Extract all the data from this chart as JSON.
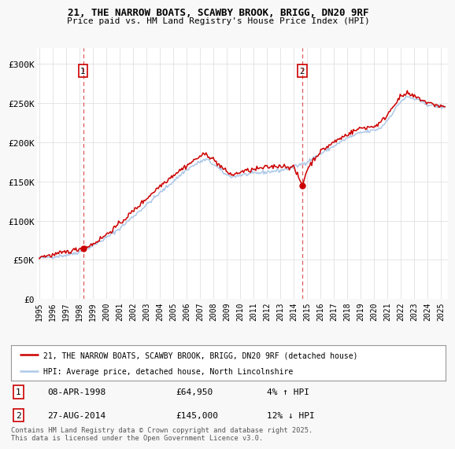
{
  "title": "21, THE NARROW BOATS, SCAWBY BROOK, BRIGG, DN20 9RF",
  "subtitle": "Price paid vs. HM Land Registry's House Price Index (HPI)",
  "xlim": [
    1994.8,
    2025.5
  ],
  "ylim": [
    0,
    320000
  ],
  "yticks": [
    0,
    50000,
    100000,
    150000,
    200000,
    250000,
    300000
  ],
  "ytick_labels": [
    "£0",
    "£50K",
    "£100K",
    "£150K",
    "£200K",
    "£250K",
    "£300K"
  ],
  "xticks": [
    1995,
    1996,
    1997,
    1998,
    1999,
    2000,
    2001,
    2002,
    2003,
    2004,
    2005,
    2006,
    2007,
    2008,
    2009,
    2010,
    2011,
    2012,
    2013,
    2014,
    2015,
    2016,
    2017,
    2018,
    2019,
    2020,
    2021,
    2022,
    2023,
    2024,
    2025
  ],
  "hpi_color": "#adc8e8",
  "price_color": "#cc0000",
  "marker1_x": 1998.27,
  "marker1_y": 64950,
  "marker1_label": "1",
  "marker1_date": "08-APR-1998",
  "marker1_price": "£64,950",
  "marker1_hpi": "4% ↑ HPI",
  "marker2_x": 2014.65,
  "marker2_y": 145000,
  "marker2_label": "2",
  "marker2_date": "27-AUG-2014",
  "marker2_price": "£145,000",
  "marker2_hpi": "12% ↓ HPI",
  "legend_line1": "21, THE NARROW BOATS, SCAWBY BROOK, BRIGG, DN20 9RF (detached house)",
  "legend_line2": "HPI: Average price, detached house, North Lincolnshire",
  "footer": "Contains HM Land Registry data © Crown copyright and database right 2025.\nThis data is licensed under the Open Government Licence v3.0.",
  "background_color": "#f8f8f8",
  "plot_bg_color": "#ffffff",
  "grid_color": "#e0e0e0"
}
